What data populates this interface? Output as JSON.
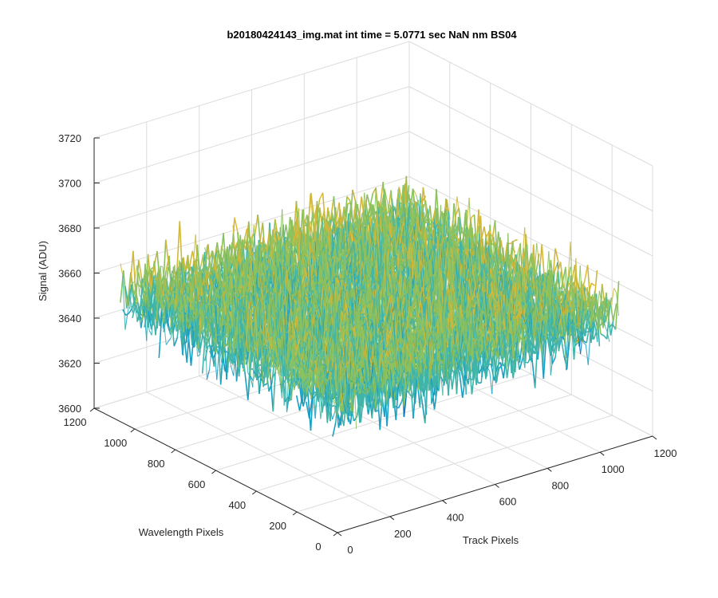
{
  "chart_data": {
    "type": "surface",
    "title": "b20180424143_img.mat int time = 5.0771 sec  NaN nm BS04",
    "xlabel": "Track Pixels",
    "ylabel": "Wavelength Pixels",
    "zlabel": "Signal (ADU)",
    "xlim": [
      0,
      1200
    ],
    "ylim": [
      0,
      1200
    ],
    "zlim": [
      3600,
      3720
    ],
    "x_ticks": [
      "0",
      "200",
      "400",
      "600",
      "800",
      "1000",
      "1200"
    ],
    "y_ticks": [
      "0",
      "200",
      "400",
      "600",
      "800",
      "1000",
      "1200"
    ],
    "z_ticks": [
      "3600",
      "3620",
      "3640",
      "3660",
      "3680",
      "3700",
      "3720"
    ],
    "data_extent": {
      "x": [
        1,
        1072
      ],
      "y": [
        1,
        1072
      ]
    },
    "signal_mean": 3657,
    "signal_noise_std": 8,
    "grid": "on",
    "colormap": [
      "#0072bd",
      "#1a9fc4",
      "#3fb4a9",
      "#8cc15f",
      "#d2b83a",
      "#e3c03a"
    ]
  }
}
